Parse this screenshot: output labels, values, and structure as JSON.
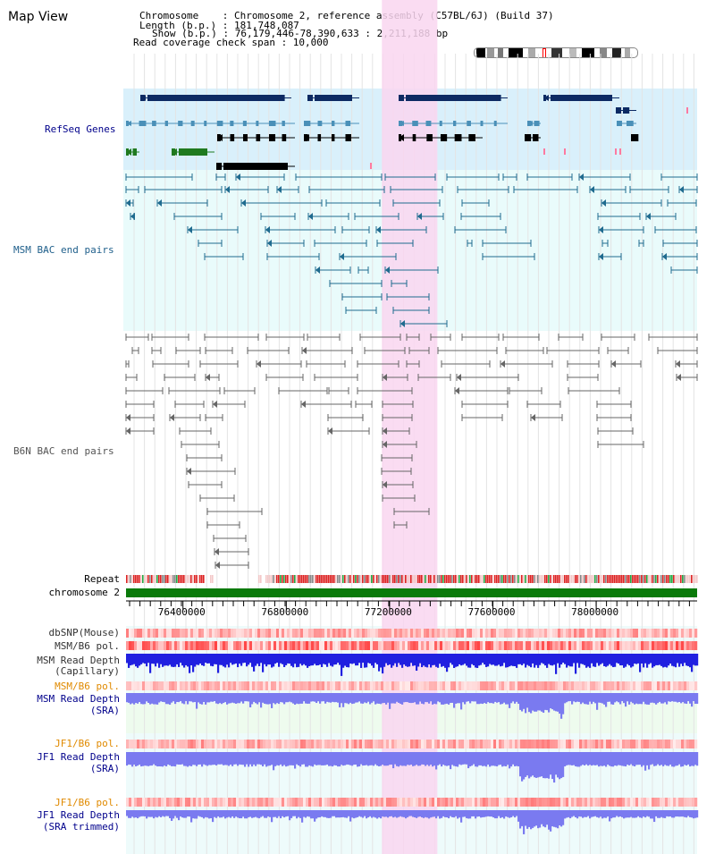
{
  "window": {
    "title": "Map View"
  },
  "header": {
    "chromosome_line": "Chromosome    : Chromosome 2, reference assembly (C57BL/6J) (Build 37)",
    "length_line": "Length (b.p.) : 181,748,087",
    "show_line": "Show (b.p.) : 76,179,446-78,390,633 : 2,211,188 bp",
    "coverage_line": "Read coverage check span : 10,000"
  },
  "tracks": {
    "refseq": "RefSeq Genes",
    "msm_bac": "MSM BAC end pairs",
    "b6n_bac": "B6N BAC end pairs",
    "repeat": "Repeat",
    "chromosome": "chromosome 2",
    "dbsnp": "dbSNP(Mouse)",
    "msm_pol1": "MSM/B6 pol.",
    "msm_depth_cap_1": "MSM Read Depth",
    "msm_depth_cap_2": "(Capillary)",
    "msm_pol2": "MSM/B6 pol.",
    "msm_depth_sra_1": "MSM Read Depth",
    "msm_depth_sra_2": "(SRA)",
    "jf1_pol1": "JF1/B6 pol.",
    "jf1_depth_1": "JF1 Read Depth",
    "jf1_depth_2": "(SRA)",
    "jf1_pol2": "JF1/B6 pol.",
    "jf1_trim_1": "JF1 Read Depth",
    "jf1_trim_2": "(SRA trimmed)"
  },
  "axis": {
    "ticks": [
      {
        "label": "76400000",
        "bp": 76400000
      },
      {
        "label": "76800000",
        "bp": 76800000
      },
      {
        "label": "77200000",
        "bp": 77200000
      },
      {
        "label": "77600000",
        "bp": 77600000
      },
      {
        "label": "78000000",
        "bp": 78000000
      }
    ],
    "start_bp": 76179446,
    "end_bp": 78390633
  },
  "highlight": {
    "start_bp": 77170000,
    "end_bp": 77385000
  },
  "colors": {
    "refseq_dark": "#0d2a63",
    "refseq_mid": "#4a90b8",
    "refseq_green": "#1f7a1f",
    "msm_bac": "#1f6b8f",
    "b6n_bac": "#666666",
    "highlight": "#f9d6f0",
    "chromosome_bar": "#0a7a0a",
    "depth_blue": "#2020e0",
    "depth_light": "#7a7af0",
    "snp_red": "#ee5555",
    "pol_label": "#e08a00",
    "depth_label": "#00008b",
    "msm_label": "#1f5f8b"
  }
}
